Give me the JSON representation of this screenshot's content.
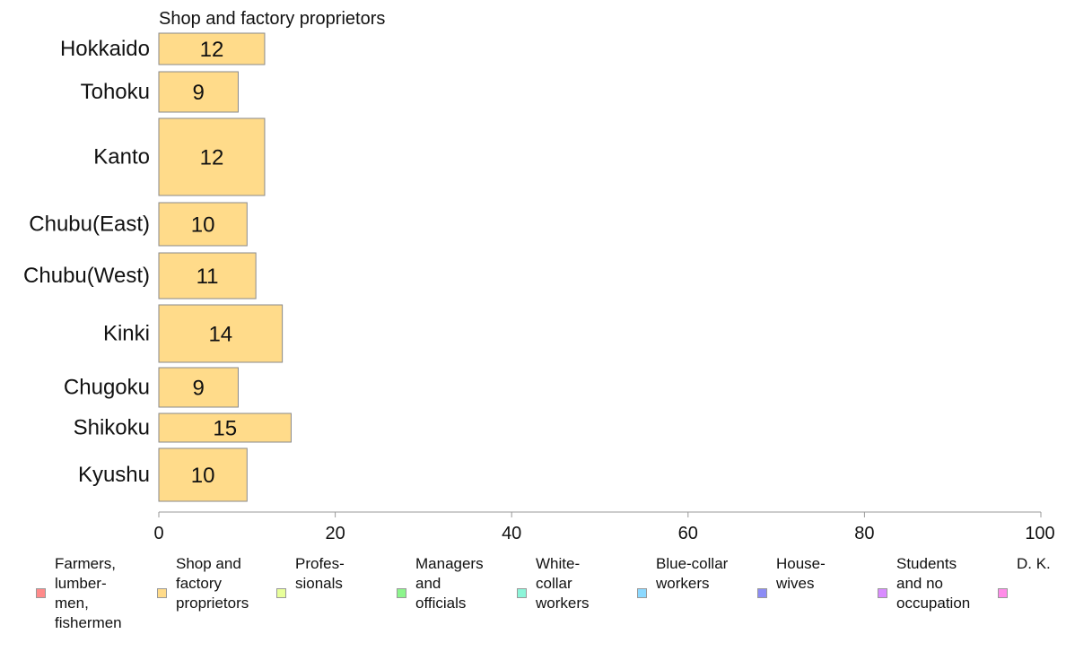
{
  "chart_data": {
    "type": "bar",
    "title": "Shop and factory proprietors",
    "categories": [
      "Hokkaido",
      "Tohoku",
      "Kanto",
      "Chubu(East)",
      "Chubu(West)",
      "Kinki",
      "Chugoku",
      "Shikoku",
      "Kyushu"
    ],
    "series": [
      {
        "name": "Shop and factory proprietors",
        "values": [
          12,
          9,
          12,
          10,
          11,
          14,
          9,
          15,
          10
        ],
        "labels": [
          "12",
          "9",
          "12",
          "10",
          "11",
          "14",
          "9",
          "15",
          "10"
        ],
        "color": "#ffdb8a"
      }
    ],
    "xlim": [
      0,
      100
    ],
    "xticks": [
      "0",
      "20",
      "40",
      "60",
      "80",
      "100"
    ],
    "grid": false,
    "legend_position": "bottom"
  },
  "legend": [
    {
      "label": "Farmers,\nlumber-\nmen,\nfishermen",
      "color": "#ff8a8a"
    },
    {
      "label": "Shop and\nfactory\nproprietors",
      "color": "#ffdb8a"
    },
    {
      "label": "Profes-\nsionals",
      "color": "#e8ff9a"
    },
    {
      "label": "Managers\nand\nofficials",
      "color": "#8cf58c"
    },
    {
      "label": "White-\ncollar\nworkers",
      "color": "#8cf5d9"
    },
    {
      "label": "Blue-collar\nworkers",
      "color": "#8cd9ff"
    },
    {
      "label": "House-\nwives",
      "color": "#8c8cf5"
    },
    {
      "label": "Students\nand no\noccupation",
      "color": "#d98cff"
    },
    {
      "label": "D. K.",
      "color": "#ff8ce8"
    }
  ]
}
